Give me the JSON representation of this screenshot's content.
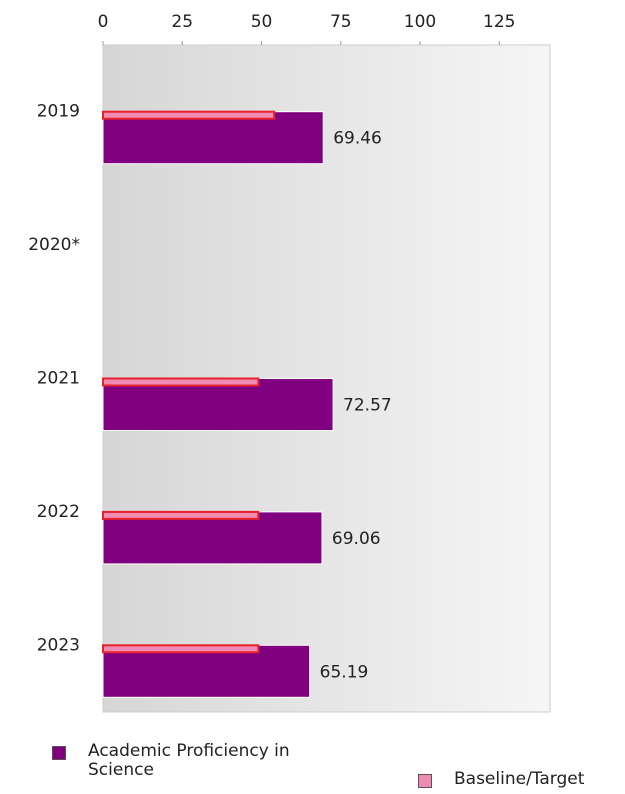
{
  "chart_data": {
    "type": "bar",
    "orientation": "horizontal",
    "categories": [
      "2019",
      "2020*",
      "2021",
      "2022",
      "2023"
    ],
    "series": [
      {
        "name": "Academic Proficiency in Science",
        "color": "#800080",
        "values": [
          69.46,
          null,
          72.57,
          69.06,
          65.19
        ]
      },
      {
        "name": "Baseline/Target",
        "color": "#f08cb4",
        "values": [
          54,
          null,
          49,
          49,
          49
        ]
      }
    ],
    "xlim": [
      0,
      141
    ],
    "xticks": [
      0,
      25,
      50,
      75,
      100,
      125
    ]
  }
}
